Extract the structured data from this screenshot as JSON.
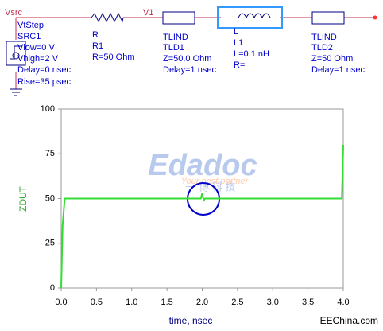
{
  "schematic": {
    "labels": [
      "Vsrc",
      "VtStep",
      "SRC1",
      "Vlow=0 V",
      "Vhigh=2 V",
      "Delay=0 nsec",
      "Rise=35 psec",
      "R",
      "R1",
      "R=50 Ohm",
      "V1",
      "TLIND",
      "TLD1",
      "Z=50.0 Ohm",
      "Delay=1 nsec",
      "L",
      "L1",
      "L=0.1 nH",
      "R=",
      "TLIND",
      "TLD2",
      "Z=50 Ohm",
      "Delay=1 nsec"
    ]
  },
  "watermark": {
    "text": "Edadoc",
    "tagline": "Your best partner",
    "chinese": "一 博 科 技"
  },
  "footer": "EEChina.com",
  "chart_data": {
    "type": "line",
    "x_label": "time, nsec",
    "y_label": "ZDUT",
    "x": [
      0,
      0.02,
      0.05,
      1.98,
      2.0,
      2.02,
      2.04,
      3.98,
      4.0
    ],
    "series": [
      {
        "name": "ZDUT",
        "color": "#33dd33",
        "values": [
          0,
          35,
          50,
          50,
          53,
          49,
          50,
          50,
          80
        ]
      }
    ],
    "xlim": [
      0,
      4
    ],
    "ylim": [
      0,
      100
    ],
    "xticks": [
      {
        "value": 0,
        "label": "0.0"
      },
      {
        "value": 0.5,
        "label": "0.5"
      },
      {
        "value": 1,
        "label": "1.0"
      },
      {
        "value": 1.5,
        "label": "1.5"
      },
      {
        "value": 2,
        "label": "2.0"
      },
      {
        "value": 2.5,
        "label": "2.5"
      },
      {
        "value": 3,
        "label": "3.0"
      },
      {
        "value": 3.5,
        "label": "3.5"
      },
      {
        "value": 4,
        "label": "4.0"
      }
    ],
    "yticks": [
      0,
      25,
      50,
      75,
      100
    ]
  }
}
